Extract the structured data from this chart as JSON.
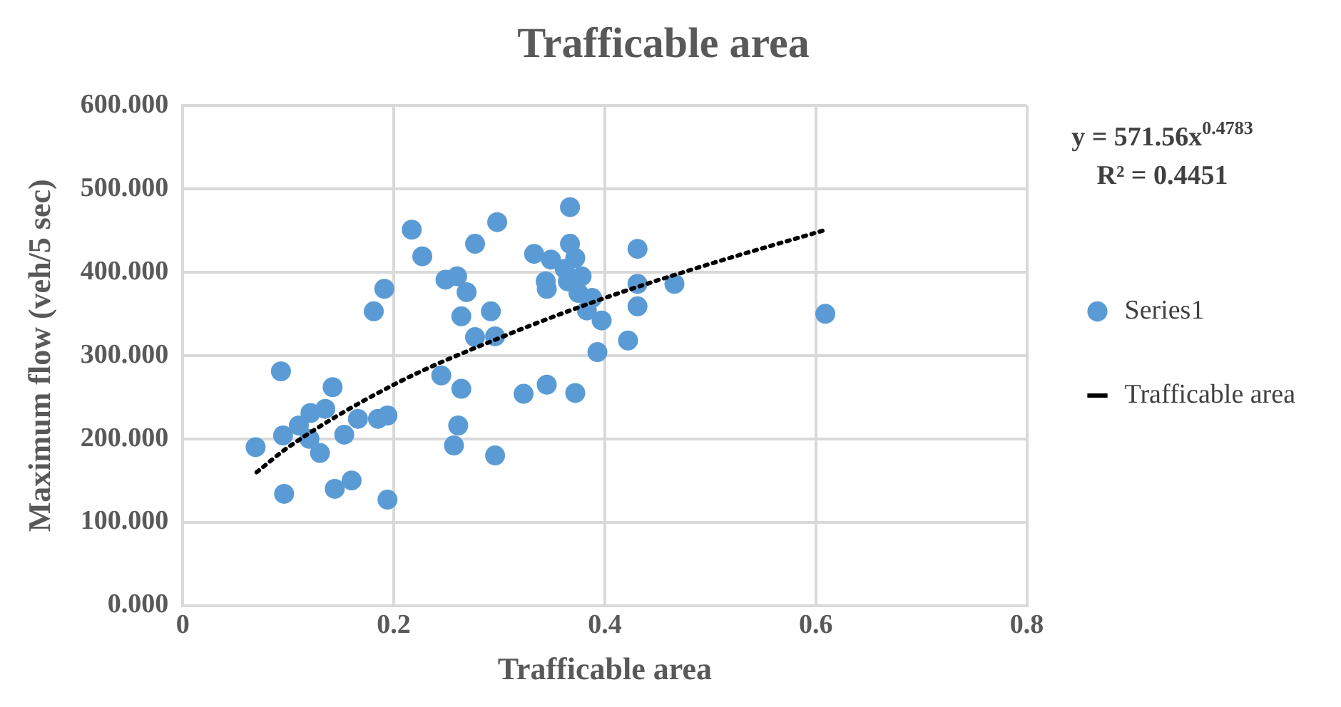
{
  "chart_data": {
    "type": "scatter",
    "title": "Trafficable area",
    "xlabel": "Trafficable area",
    "ylabel": "Maximum flow (veh/5 sec)",
    "annotations": [
      "y = 571.56x$^{0.4783}$",
      "R² = 0.4451"
    ],
    "xlim": [
      0,
      0.8
    ],
    "xticks": [
      0,
      0.2,
      0.4,
      0.6,
      0.8
    ],
    "ylim": [
      0,
      600
    ],
    "yticks": [
      {
        "value": 0,
        "label": "0.000"
      },
      {
        "value": 100,
        "label": "100.000"
      },
      {
        "value": 200,
        "label": "200.000"
      },
      {
        "value": 300,
        "label": "300.000"
      },
      {
        "value": 400,
        "label": "400.000"
      },
      {
        "value": 500,
        "label": "500.000"
      },
      {
        "value": 600,
        "label": "600.000"
      }
    ],
    "grid": true,
    "legend": "right",
    "marker": "circle",
    "series": [
      {
        "name": "Series1",
        "color": "#5b9bd5",
        "x": [
          0.069,
          0.093,
          0.095,
          0.096,
          0.11,
          0.121,
          0.12,
          0.135,
          0.13,
          0.142,
          0.144,
          0.153,
          0.16,
          0.166,
          0.181,
          0.185,
          0.191,
          0.194,
          0.194,
          0.217,
          0.227,
          0.245,
          0.249,
          0.257,
          0.26,
          0.261,
          0.264,
          0.264,
          0.269,
          0.277,
          0.277,
          0.292,
          0.296,
          0.296,
          0.298,
          0.323,
          0.333,
          0.344,
          0.345,
          0.345,
          0.349,
          0.362,
          0.365,
          0.367,
          0.367,
          0.372,
          0.372,
          0.375,
          0.378,
          0.383,
          0.388,
          0.393,
          0.397,
          0.422,
          0.431,
          0.431,
          0.431,
          0.466,
          0.609
        ],
        "values": [
          190,
          281,
          204,
          134,
          216,
          231,
          200,
          236,
          183,
          262,
          140,
          205,
          150,
          224,
          353,
          224,
          380,
          228,
          127,
          451,
          419,
          276,
          391,
          192,
          395,
          216,
          260,
          347,
          376,
          322,
          434,
          353,
          323,
          180,
          460,
          254,
          422,
          389,
          380,
          265,
          415,
          404,
          389,
          478,
          434,
          417,
          255,
          375,
          395,
          354,
          369,
          304,
          342,
          318,
          428,
          386,
          359,
          386,
          350
        ]
      },
      {
        "name": "Trafficable area",
        "type": "line",
        "color": "#000000",
        "line_style": "dotted",
        "marker": "none",
        "x": [
          0.07,
          0.1,
          0.2,
          0.3,
          0.4,
          0.5,
          0.61
        ],
        "values": [
          160,
          190,
          265,
          321,
          369,
          410,
          451
        ]
      }
    ]
  }
}
